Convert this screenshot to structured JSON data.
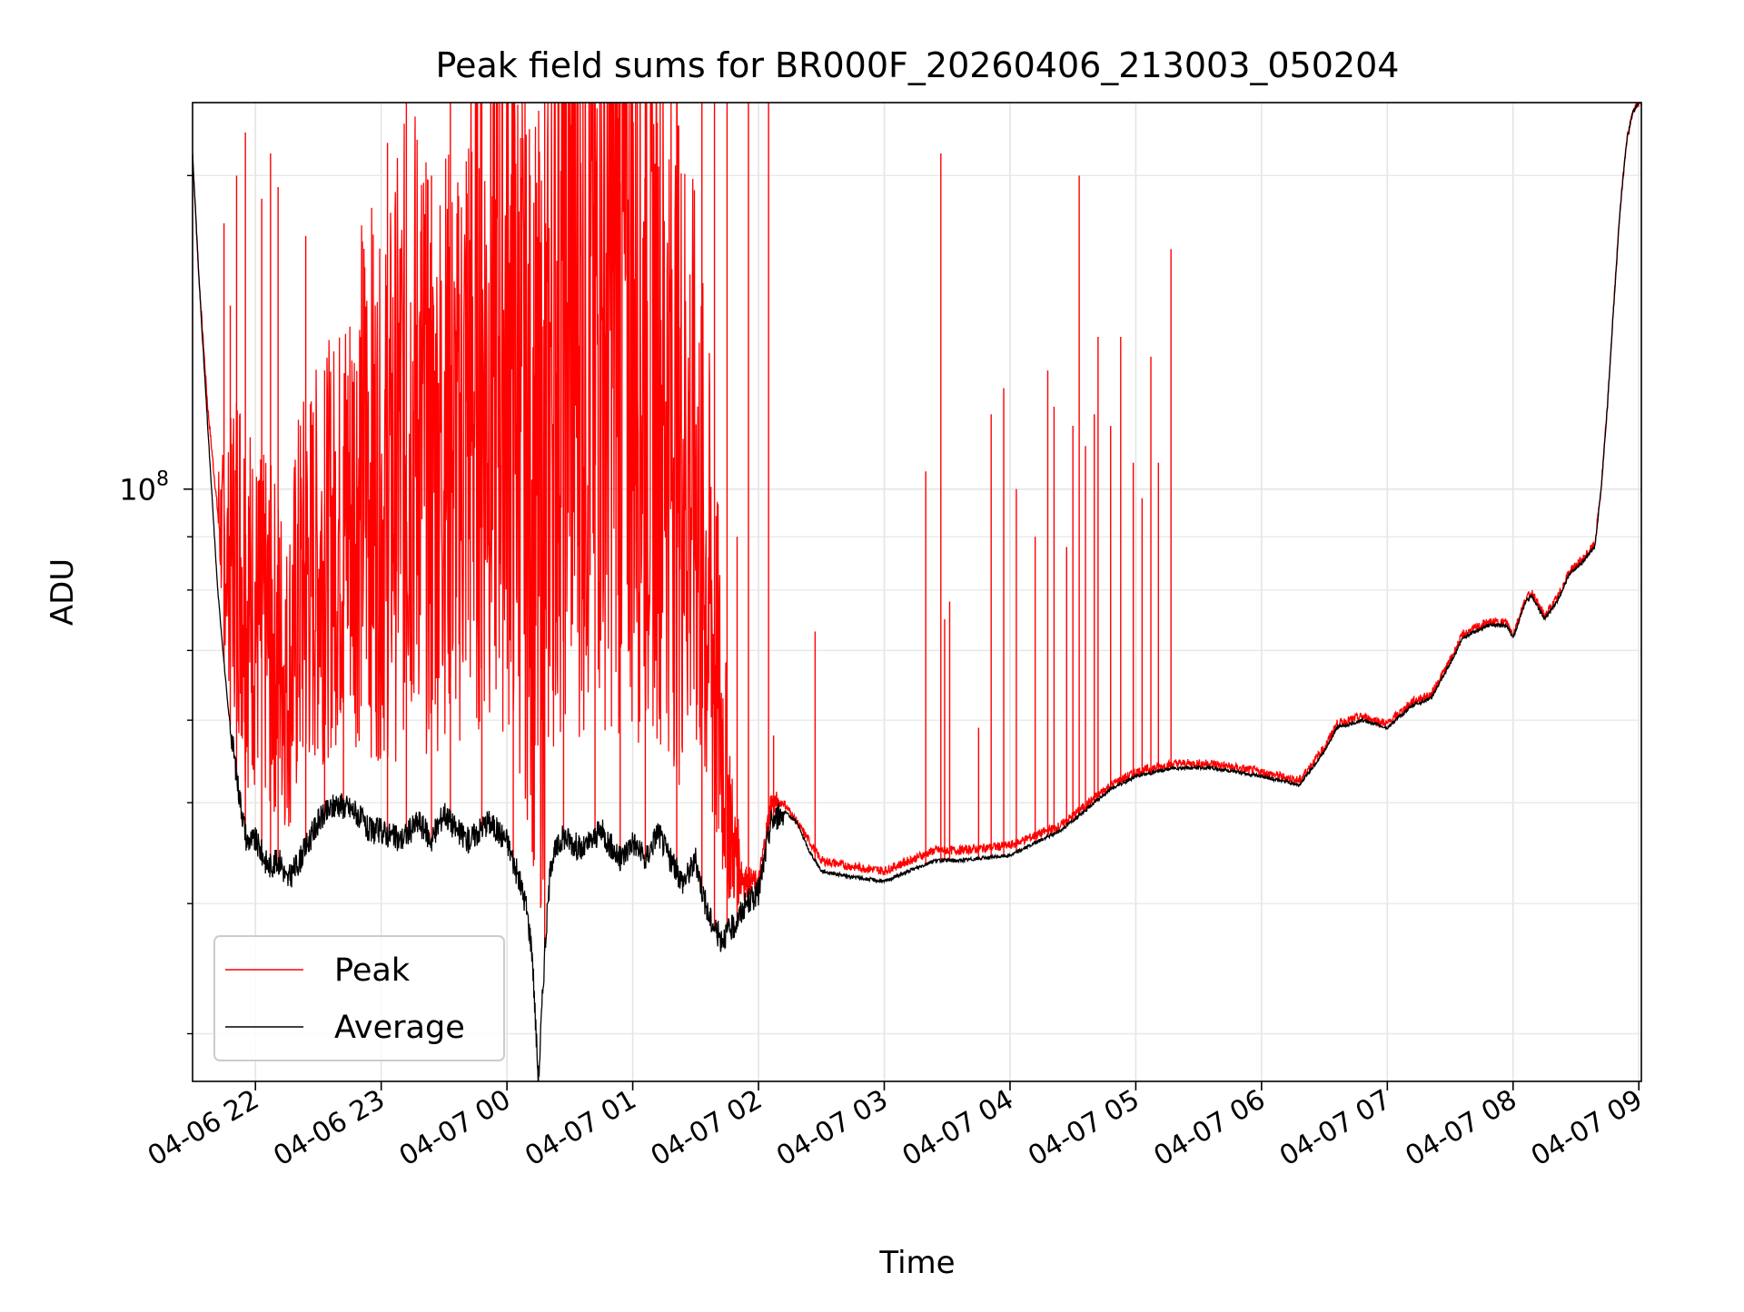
{
  "chart_data": {
    "type": "line",
    "title": "Peak field sums for BR000F_20260406_213003_050204",
    "xlabel": "Time",
    "ylabel": "ADU",
    "yscale": "log",
    "ylim": [
      27000000,
      235000000
    ],
    "xlim_hours": [
      21.5,
      33.02
    ],
    "x_ticks": [
      {
        "hour": 22,
        "label": "04-06 22"
      },
      {
        "hour": 23,
        "label": "04-06 23"
      },
      {
        "hour": 24,
        "label": "04-07 00"
      },
      {
        "hour": 25,
        "label": "04-07 01"
      },
      {
        "hour": 26,
        "label": "04-07 02"
      },
      {
        "hour": 27,
        "label": "04-07 03"
      },
      {
        "hour": 28,
        "label": "04-07 04"
      },
      {
        "hour": 29,
        "label": "04-07 05"
      },
      {
        "hour": 30,
        "label": "04-07 06"
      },
      {
        "hour": 31,
        "label": "04-07 07"
      },
      {
        "hour": 32,
        "label": "04-07 08"
      },
      {
        "hour": 33,
        "label": "04-07 09"
      }
    ],
    "y_major_ticks": [
      {
        "value": 100000000,
        "label_base": "10",
        "label_exp": "8"
      }
    ],
    "y_minor_ticks": [
      30000000,
      40000000,
      50000000,
      60000000,
      70000000,
      80000000,
      90000000,
      200000000
    ],
    "grid": true,
    "legend": {
      "position": "lower-left",
      "entries": [
        {
          "name": "Peak",
          "color": "#ff0000"
        },
        {
          "name": "Average",
          "color": "#000000"
        }
      ]
    },
    "series": [
      {
        "name": "Average",
        "color": "#000000",
        "x_hours": [
          21.5,
          21.55,
          21.62,
          21.7,
          21.78,
          21.86,
          21.93,
          22.0,
          22.1,
          22.2,
          22.25,
          22.35,
          22.5,
          22.65,
          22.8,
          22.9,
          23.0,
          23.15,
          23.3,
          23.4,
          23.5,
          23.6,
          23.7,
          23.85,
          24.0,
          24.1,
          24.15,
          24.2,
          24.25,
          24.3,
          24.35,
          24.45,
          24.6,
          24.75,
          24.9,
          25.0,
          25.1,
          25.2,
          25.3,
          25.4,
          25.5,
          25.6,
          25.7,
          25.8,
          25.9,
          26.0,
          26.1,
          26.2,
          26.3,
          26.4,
          26.5,
          26.7,
          27.0,
          27.2,
          27.4,
          27.6,
          28.0,
          28.4,
          28.8,
          29.0,
          29.3,
          29.6,
          30.0,
          30.3,
          30.5,
          30.6,
          30.8,
          31.0,
          31.2,
          31.35,
          31.5,
          31.6,
          31.8,
          31.95,
          32.0,
          32.1,
          32.15,
          32.25,
          32.35,
          32.45,
          32.55,
          32.65,
          32.7,
          32.75,
          32.8,
          32.85,
          32.9,
          32.95,
          33.0
        ],
        "values": [
          210000000,
          160000000,
          115000000,
          80000000,
          62000000,
          52000000,
          46000000,
          46000000,
          43500000,
          44000000,
          42000000,
          44000000,
          48000000,
          50000000,
          49000000,
          47000000,
          47000000,
          46000000,
          48000000,
          46000000,
          49000000,
          47000000,
          46000000,
          48000000,
          46000000,
          42000000,
          40000000,
          36000000,
          27000000,
          36000000,
          44000000,
          46500000,
          45000000,
          47000000,
          44000000,
          46000000,
          44000000,
          47000000,
          44000000,
          42000000,
          44000000,
          39000000,
          37000000,
          38000000,
          40000000,
          41000000,
          48000000,
          49000000,
          48000000,
          45000000,
          43000000,
          42500000,
          42000000,
          43000000,
          44000000,
          44000000,
          44500000,
          47000000,
          51500000,
          53000000,
          54000000,
          54000000,
          53000000,
          52000000,
          56000000,
          59000000,
          60000000,
          59000000,
          62000000,
          63000000,
          68000000,
          72000000,
          74000000,
          74000000,
          72000000,
          78000000,
          79000000,
          75000000,
          78000000,
          83000000,
          85000000,
          88000000,
          100000000,
          120000000,
          150000000,
          185000000,
          215000000,
          230000000,
          235000000
        ]
      },
      {
        "name": "Peak",
        "color": "#ff0000",
        "x_hours": [
          21.5,
          21.55,
          21.62,
          21.7,
          21.78,
          21.86,
          21.93,
          22.0,
          22.1,
          22.2,
          22.25,
          22.35,
          22.5,
          22.65,
          22.8,
          22.9,
          23.0,
          23.15,
          23.3,
          23.4,
          23.5,
          23.6,
          23.7,
          23.85,
          24.0,
          24.1,
          24.15,
          24.2,
          24.25,
          24.3,
          24.35,
          24.45,
          24.6,
          24.75,
          24.9,
          25.0,
          25.1,
          25.2,
          25.3,
          25.4,
          25.5,
          25.6,
          25.7,
          25.8,
          25.9,
          26.0,
          26.1,
          26.2,
          26.3,
          26.4,
          26.5,
          26.7,
          27.0,
          27.2,
          27.4,
          27.6,
          28.0,
          28.4,
          28.8,
          29.0,
          29.3,
          29.6,
          30.0,
          30.3,
          30.5,
          30.6,
          30.8,
          31.0,
          31.2,
          31.35,
          31.5,
          31.6,
          31.8,
          31.95,
          32.0,
          32.1,
          32.15,
          32.25,
          32.35,
          32.45,
          32.55,
          32.65,
          32.7,
          32.75,
          32.8,
          32.85,
          32.9,
          32.95,
          33.0
        ],
        "values": [
          210000000,
          160000000,
          120000000,
          95000000,
          85000000,
          90000000,
          80000000,
          75000000,
          72000000,
          70000000,
          65000000,
          78000000,
          85000000,
          90000000,
          100000000,
          105000000,
          95000000,
          110000000,
          120000000,
          100000000,
          115000000,
          105000000,
          125000000,
          130000000,
          140000000,
          120000000,
          110000000,
          100000000,
          90000000,
          95000000,
          130000000,
          150000000,
          140000000,
          145000000,
          150000000,
          140000000,
          135000000,
          130000000,
          120000000,
          110000000,
          100000000,
          80000000,
          60000000,
          45000000,
          42000000,
          42000000,
          50000000,
          50000000,
          48000000,
          46000000,
          44000000,
          43500000,
          43000000,
          44000000,
          45000000,
          45000000,
          45500000,
          47500000,
          52000000,
          53500000,
          54500000,
          54500000,
          53500000,
          52500000,
          56500000,
          59500000,
          60500000,
          59500000,
          62500000,
          63500000,
          68500000,
          72500000,
          74500000,
          74500000,
          72500000,
          78500000,
          79500000,
          75500000,
          78500000,
          83500000,
          85500000,
          88500000,
          100000000,
          120000000,
          150000000,
          185000000,
          215000000,
          230000000,
          235000000
        ]
      }
    ],
    "peak_spikes": [
      {
        "hour": 21.75,
        "value": 180000000
      },
      {
        "hour": 21.8,
        "value": 150000000
      },
      {
        "hour": 21.85,
        "value": 200000000
      },
      {
        "hour": 21.92,
        "value": 220000000
      },
      {
        "hour": 22.05,
        "value": 190000000
      },
      {
        "hour": 22.12,
        "value": 210000000
      },
      {
        "hour": 22.18,
        "value": 195000000
      },
      {
        "hour": 22.4,
        "value": 175000000
      },
      {
        "hour": 22.55,
        "value": 130000000
      },
      {
        "hour": 22.7,
        "value": 110000000
      },
      {
        "hour": 23.05,
        "value": 215000000
      },
      {
        "hour": 23.2,
        "value": 235000000
      },
      {
        "hour": 23.4,
        "value": 200000000
      },
      {
        "hour": 23.55,
        "value": 235000000
      },
      {
        "hour": 23.8,
        "value": 235000000
      },
      {
        "hour": 24.05,
        "value": 235000000
      },
      {
        "hour": 24.3,
        "value": 235000000
      },
      {
        "hour": 24.45,
        "value": 235000000
      },
      {
        "hour": 24.7,
        "value": 235000000
      },
      {
        "hour": 24.9,
        "value": 235000000
      },
      {
        "hour": 25.1,
        "value": 235000000
      },
      {
        "hour": 25.35,
        "value": 235000000
      },
      {
        "hour": 25.55,
        "value": 235000000
      },
      {
        "hour": 25.65,
        "value": 235000000
      },
      {
        "hour": 25.75,
        "value": 235000000
      },
      {
        "hour": 25.83,
        "value": 90000000
      },
      {
        "hour": 25.92,
        "value": 235000000
      },
      {
        "hour": 26.08,
        "value": 235000000
      },
      {
        "hour": 26.12,
        "value": 58000000
      },
      {
        "hour": 26.45,
        "value": 73000000
      },
      {
        "hour": 27.33,
        "value": 104000000
      },
      {
        "hour": 27.45,
        "value": 210000000
      },
      {
        "hour": 27.48,
        "value": 75000000
      },
      {
        "hour": 27.52,
        "value": 78000000
      },
      {
        "hour": 27.75,
        "value": 59000000
      },
      {
        "hour": 27.85,
        "value": 118000000
      },
      {
        "hour": 27.95,
        "value": 125000000
      },
      {
        "hour": 28.05,
        "value": 100000000
      },
      {
        "hour": 28.2,
        "value": 90000000
      },
      {
        "hour": 28.3,
        "value": 130000000
      },
      {
        "hour": 28.35,
        "value": 120000000
      },
      {
        "hour": 28.45,
        "value": 88000000
      },
      {
        "hour": 28.5,
        "value": 115000000
      },
      {
        "hour": 28.55,
        "value": 200000000
      },
      {
        "hour": 28.6,
        "value": 110000000
      },
      {
        "hour": 28.67,
        "value": 118000000
      },
      {
        "hour": 28.7,
        "value": 140000000
      },
      {
        "hour": 28.8,
        "value": 115000000
      },
      {
        "hour": 28.88,
        "value": 140000000
      },
      {
        "hour": 28.98,
        "value": 106000000
      },
      {
        "hour": 29.05,
        "value": 98000000
      },
      {
        "hour": 29.12,
        "value": 134000000
      },
      {
        "hour": 29.18,
        "value": 106000000
      },
      {
        "hour": 29.28,
        "value": 170000000
      }
    ]
  }
}
